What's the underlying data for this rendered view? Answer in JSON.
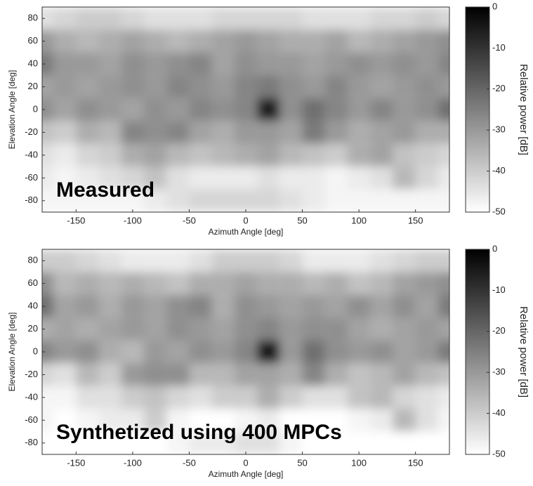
{
  "chart_data": [
    {
      "type": "heatmap",
      "annotation": "Measured",
      "x_label": "Azimuth Angle [deg]",
      "y_label": "Elevation Angle [deg]",
      "x": [
        -180,
        -160,
        -140,
        -120,
        -100,
        -80,
        -60,
        -40,
        -20,
        0,
        20,
        40,
        60,
        80,
        100,
        120,
        140,
        160,
        180
      ],
      "y": [
        80,
        60,
        40,
        20,
        0,
        -20,
        -40,
        -60,
        -80
      ],
      "z": [
        [
          -44,
          -42,
          -40,
          -40,
          -42,
          -44,
          -44,
          -44,
          -42,
          -42,
          -42,
          -42,
          -44,
          -44,
          -44,
          -42,
          -42,
          -40,
          -42
        ],
        [
          -30,
          -34,
          -36,
          -34,
          -32,
          -34,
          -36,
          -34,
          -32,
          -30,
          -32,
          -34,
          -34,
          -32,
          -36,
          -34,
          -32,
          -30,
          -28
        ],
        [
          -24,
          -30,
          -30,
          -32,
          -28,
          -30,
          -28,
          -26,
          -32,
          -28,
          -30,
          -30,
          -32,
          -30,
          -28,
          -30,
          -28,
          -30,
          -26
        ],
        [
          -32,
          -30,
          -32,
          -30,
          -28,
          -30,
          -26,
          -28,
          -30,
          -26,
          -24,
          -28,
          -30,
          -26,
          -30,
          -32,
          -30,
          -28,
          -30
        ],
        [
          -28,
          -32,
          -28,
          -30,
          -32,
          -28,
          -30,
          -26,
          -28,
          -26,
          -6,
          -28,
          -22,
          -26,
          -30,
          -26,
          -30,
          -28,
          -22
        ],
        [
          -38,
          -40,
          -34,
          -36,
          -26,
          -28,
          -26,
          -32,
          -34,
          -30,
          -30,
          -32,
          -24,
          -30,
          -34,
          -32,
          -30,
          -34,
          -34
        ],
        [
          -44,
          -46,
          -42,
          -40,
          -34,
          -32,
          -36,
          -38,
          -36,
          -34,
          -32,
          -36,
          -38,
          -40,
          -34,
          -32,
          -38,
          -40,
          -42
        ],
        [
          -46,
          -48,
          -46,
          -44,
          -42,
          -38,
          -44,
          -46,
          -46,
          -46,
          -44,
          -46,
          -46,
          -48,
          -46,
          -44,
          -36,
          -42,
          -46
        ],
        [
          -48,
          -48,
          -48,
          -48,
          -48,
          -46,
          -44,
          -42,
          -42,
          -42,
          -42,
          -44,
          -46,
          -48,
          -48,
          -48,
          -48,
          -48,
          -48
        ]
      ],
      "xlim": [
        -180,
        180
      ],
      "xticks": [
        -150,
        -100,
        -50,
        0,
        50,
        100,
        150
      ],
      "ylim": [
        -90,
        90
      ],
      "yticks": [
        -80,
        -60,
        -40,
        -20,
        0,
        20,
        40,
        60,
        80
      ],
      "zlim": [
        -50,
        0
      ],
      "zticks": [
        0,
        -10,
        -20,
        -30,
        -40,
        -50
      ],
      "colorbar_label": "Relative power  [dB]",
      "colormap": [
        "#000000",
        "#ffffff"
      ]
    },
    {
      "type": "heatmap",
      "annotation": "Synthetized using 400 MPCs",
      "x_label": "Azimuth Angle [deg]",
      "y_label": "Elevation Angle [deg]",
      "x": [
        -180,
        -160,
        -140,
        -120,
        -100,
        -80,
        -60,
        -40,
        -20,
        0,
        20,
        40,
        60,
        80,
        100,
        120,
        140,
        160,
        180
      ],
      "y": [
        80,
        60,
        40,
        20,
        0,
        -20,
        -40,
        -60,
        -80
      ],
      "z": [
        [
          -40,
          -40,
          -42,
          -44,
          -46,
          -46,
          -46,
          -44,
          -40,
          -40,
          -40,
          -42,
          -46,
          -46,
          -46,
          -44,
          -42,
          -40,
          -40
        ],
        [
          -28,
          -36,
          -34,
          -36,
          -34,
          -36,
          -38,
          -34,
          -34,
          -32,
          -34,
          -34,
          -36,
          -34,
          -38,
          -36,
          -32,
          -30,
          -28
        ],
        [
          -22,
          -32,
          -30,
          -34,
          -30,
          -32,
          -28,
          -26,
          -34,
          -28,
          -30,
          -32,
          -30,
          -32,
          -28,
          -32,
          -28,
          -32,
          -24
        ],
        [
          -34,
          -32,
          -34,
          -32,
          -30,
          -32,
          -28,
          -30,
          -32,
          -28,
          -26,
          -30,
          -28,
          -28,
          -32,
          -34,
          -32,
          -30,
          -32
        ],
        [
          -26,
          -30,
          -28,
          -34,
          -36,
          -30,
          -32,
          -28,
          -30,
          -26,
          -4,
          -30,
          -22,
          -28,
          -30,
          -28,
          -32,
          -30,
          -24
        ],
        [
          -42,
          -44,
          -36,
          -40,
          -30,
          -28,
          -28,
          -36,
          -36,
          -32,
          -32,
          -34,
          -26,
          -34,
          -38,
          -36,
          -32,
          -36,
          -38
        ],
        [
          -48,
          -48,
          -44,
          -44,
          -40,
          -38,
          -42,
          -44,
          -40,
          -40,
          -34,
          -40,
          -44,
          -44,
          -38,
          -36,
          -42,
          -44,
          -46
        ],
        [
          -48,
          -50,
          -48,
          -46,
          -46,
          -40,
          -48,
          -50,
          -50,
          -48,
          -46,
          -50,
          -50,
          -50,
          -48,
          -46,
          -36,
          -44,
          -48
        ],
        [
          -50,
          -50,
          -50,
          -50,
          -50,
          -50,
          -48,
          -46,
          -46,
          -44,
          -44,
          -48,
          -50,
          -50,
          -50,
          -50,
          -50,
          -50,
          -50
        ]
      ],
      "xlim": [
        -180,
        180
      ],
      "xticks": [
        -150,
        -100,
        -50,
        0,
        50,
        100,
        150
      ],
      "ylim": [
        -90,
        90
      ],
      "yticks": [
        -80,
        -60,
        -40,
        -20,
        0,
        20,
        40,
        60,
        80
      ],
      "zlim": [
        -50,
        0
      ],
      "zticks": [
        0,
        -10,
        -20,
        -30,
        -40,
        -50
      ],
      "colorbar_label": "Relative power  [dB]",
      "colormap": [
        "#000000",
        "#ffffff"
      ]
    }
  ]
}
